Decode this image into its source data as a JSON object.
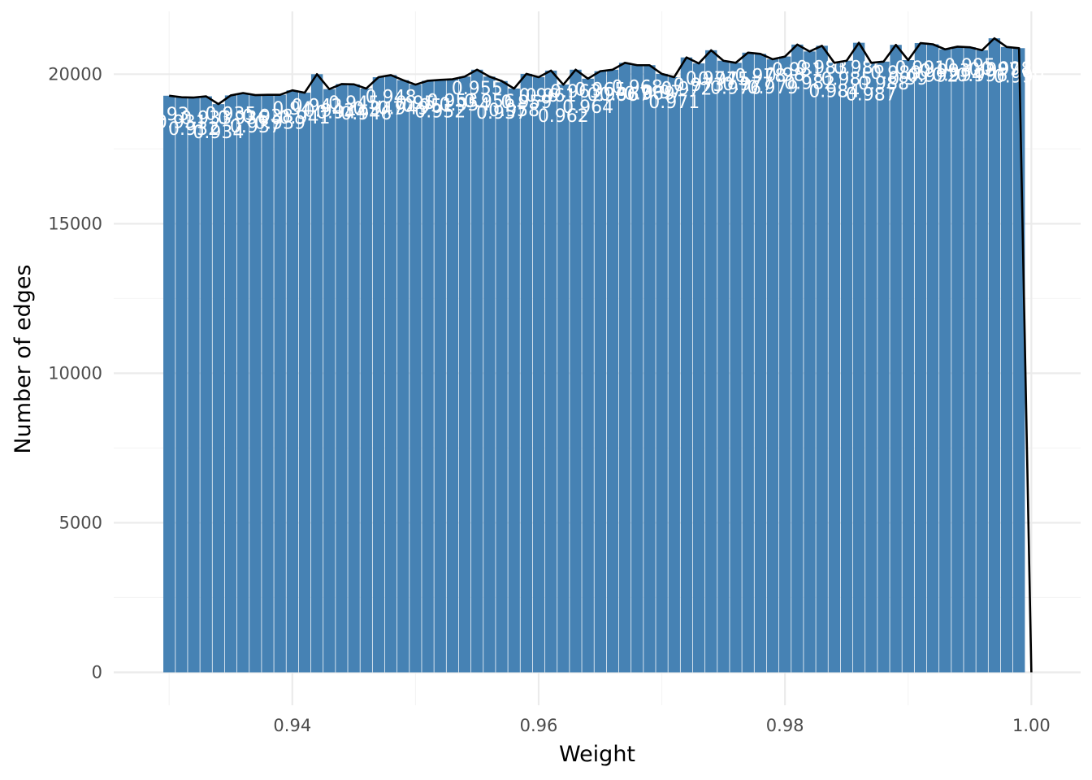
{
  "chart_data": {
    "type": "bar",
    "title": "",
    "xlabel": "Weight",
    "ylabel": "Number of edges",
    "xlim": [
      0.9255,
      1.004
    ],
    "ylim": [
      -1100,
      22100
    ],
    "x_ticks": [
      {
        "value": 0.94,
        "label": "0.94"
      },
      {
        "value": 0.96,
        "label": "0.96"
      },
      {
        "value": 0.98,
        "label": "0.98"
      },
      {
        "value": 1.0,
        "label": "1.00"
      }
    ],
    "y_ticks": [
      {
        "value": 0,
        "label": "0"
      },
      {
        "value": 5000,
        "label": "5000"
      },
      {
        "value": 10000,
        "label": "10000"
      },
      {
        "value": 15000,
        "label": "15000"
      },
      {
        "value": 20000,
        "label": "20000"
      }
    ],
    "grid": true,
    "legend": "none",
    "bar_color": "#4682B4",
    "line_color": "#000000",
    "label_color": "#ffffff",
    "bar_width": 0.00095,
    "x": [
      0.93,
      0.931,
      0.932,
      0.933,
      0.934,
      0.935,
      0.936,
      0.937,
      0.938,
      0.939,
      0.94,
      0.941,
      0.942,
      0.943,
      0.944,
      0.945,
      0.946,
      0.947,
      0.948,
      0.949,
      0.95,
      0.951,
      0.952,
      0.953,
      0.954,
      0.955,
      0.956,
      0.957,
      0.958,
      0.959,
      0.96,
      0.961,
      0.962,
      0.963,
      0.964,
      0.965,
      0.966,
      0.967,
      0.968,
      0.969,
      0.97,
      0.971,
      0.972,
      0.973,
      0.974,
      0.975,
      0.976,
      0.977,
      0.978,
      0.979,
      0.98,
      0.981,
      0.982,
      0.983,
      0.984,
      0.985,
      0.986,
      0.987,
      0.988,
      0.989,
      0.99,
      0.991,
      0.992,
      0.993,
      0.994,
      0.995,
      0.996,
      0.997,
      0.998,
      0.999
    ],
    "values": [
      19280,
      19230,
      19220,
      19260,
      19000,
      19290,
      19370,
      19300,
      19310,
      19310,
      19460,
      19380,
      20000,
      19500,
      19670,
      19660,
      19520,
      19900,
      19970,
      19800,
      19650,
      19780,
      19810,
      19830,
      19920,
      20150,
      19920,
      19770,
      19520,
      20010,
      19900,
      20120,
      19650,
      20150,
      19850,
      20100,
      20150,
      20380,
      20300,
      20300,
      20010,
      19900,
      20560,
      20360,
      20800,
      20450,
      20380,
      20720,
      20680,
      20500,
      20590,
      20990,
      20760,
      20950,
      20380,
      20450,
      21050,
      20380,
      20420,
      20980,
      20470,
      21040,
      21000,
      20830,
      20920,
      20900,
      20800,
      21200,
      20910,
      20870
    ],
    "line_end": {
      "x": 1.0,
      "y": 0
    },
    "bar_labels": [
      "0.93",
      "0.931",
      "0.932",
      "0.933",
      "0.934",
      "0.935",
      "0.936",
      "0.937",
      "0.938",
      "0.939",
      "0.94",
      "0.941",
      "0.942",
      "0.943",
      "0.944",
      "0.945",
      "0.946",
      "0.947",
      "0.948",
      "0.949",
      "0.95",
      "0.951",
      "0.952",
      "0.953",
      "0.954",
      "0.955",
      "0.956",
      "0.957",
      "0.958",
      "0.959",
      "0.96",
      "0.961",
      "0.962",
      "0.963",
      "0.964",
      "0.965",
      "0.966",
      "0.967",
      "0.968",
      "0.969",
      "0.97",
      "0.971",
      "0.972",
      "0.973",
      "0.974",
      "0.975",
      "0.976",
      "0.977",
      "0.978",
      "0.979",
      "0.98",
      "0.981",
      "0.982",
      "0.983",
      "0.984",
      "0.985",
      "0.986",
      "0.987",
      "0.988",
      "0.989",
      "0.99",
      "0.991",
      "0.992",
      "0.993",
      "0.994",
      "0.995",
      "0.996",
      "0.997",
      "0.998",
      "0.999"
    ]
  }
}
